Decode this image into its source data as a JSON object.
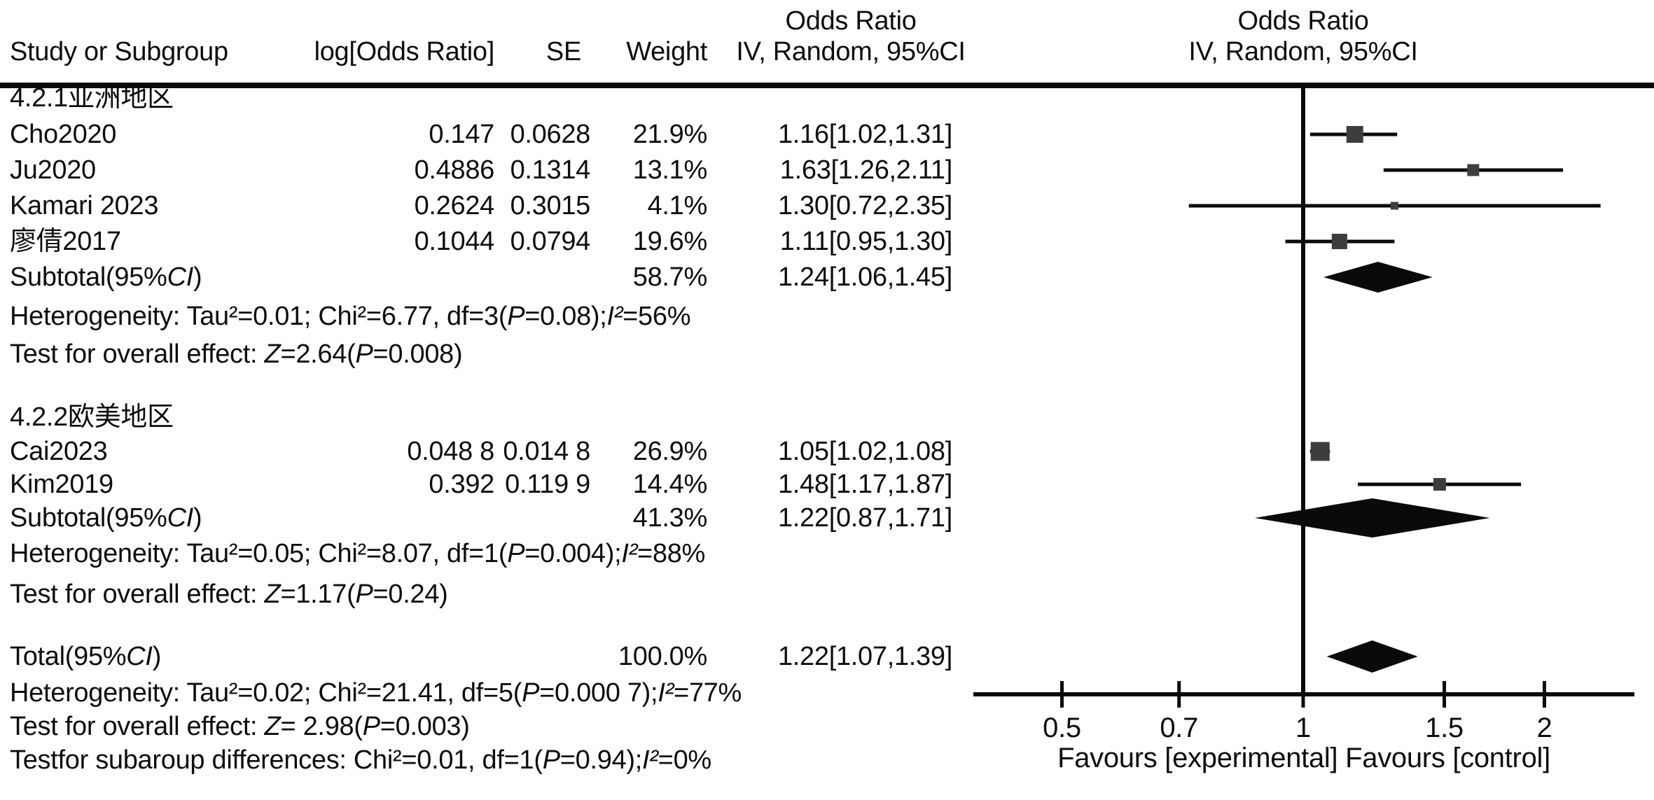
{
  "table_header": {
    "study": "Study or Subgroup",
    "log_or": "log[Odds Ratio]",
    "se": "SE",
    "weight": "Weight",
    "effect_line1": "Odds Ratio",
    "effect_line2": "IV, Random, 95%CI",
    "plot_line1": "Odds Ratio",
    "plot_line2": "IV, Random, 95%CI"
  },
  "colors": {
    "square": "#3d3d3d",
    "diamond": "#0a0a0a",
    "line": "#0a0a0a",
    "text": "#0d0d0d"
  },
  "chart_data": {
    "type": "forest",
    "effect_measure": "Odds Ratio",
    "model": "IV, Random, 95%CI",
    "x_scale": "log",
    "axis_ticks": [
      0.5,
      0.7,
      1,
      1.5,
      2
    ],
    "favours_label": "Favours [experimental] Favours [control]",
    "groups": [
      {
        "label": "4.2.1亚洲地区",
        "studies": [
          {
            "name": "Cho2020",
            "log_or": "0.147",
            "se": "0.0628",
            "weight": "21.9%",
            "ci_text": "1.16[1.02,1.31]",
            "or": 1.16,
            "lo": 1.02,
            "hi": 1.31,
            "weight_pct": 21.9
          },
          {
            "name": "Ju2020",
            "log_or": "0.4886",
            "se": "0.1314",
            "weight": "13.1%",
            "ci_text": "1.63[1.26,2.11]",
            "or": 1.63,
            "lo": 1.26,
            "hi": 2.11,
            "weight_pct": 13.1
          },
          {
            "name": "Kamari 2023",
            "log_or": "0.2624",
            "se": "0.3015",
            "weight": "4.1%",
            "ci_text": "1.30[0.72,2.35]",
            "or": 1.3,
            "lo": 0.72,
            "hi": 2.35,
            "weight_pct": 4.1
          },
          {
            "name": "廖倩2017",
            "log_or": "0.1044",
            "se": "0.0794",
            "weight": "19.6%",
            "ci_text": "1.11[0.95,1.30]",
            "or": 1.11,
            "lo": 0.95,
            "hi": 1.3,
            "weight_pct": 19.6
          }
        ],
        "subtotal": {
          "label": "Subtotal(95%CI)",
          "weight": "58.7%",
          "ci_text": "1.24[1.06,1.45]",
          "or": 1.24,
          "lo": 1.06,
          "hi": 1.45
        },
        "heterogeneity": "Heterogeneity: Tau²=0.01; Chi²=6.77, df=3(P=0.08);I²=56%",
        "overall_effect": "Test for overall effect: Z=2.64(P=0.008)"
      },
      {
        "label": "4.2.2欧美地区",
        "studies": [
          {
            "name": "Cai2023",
            "log_or": "0.048 8",
            "se": "0.014 8",
            "weight": "26.9%",
            "ci_text": "1.05[1.02,1.08]",
            "or": 1.05,
            "lo": 1.02,
            "hi": 1.08,
            "weight_pct": 26.9
          },
          {
            "name": "Kim2019",
            "log_or": "0.392",
            "se": "0.119 9",
            "weight": "14.4%",
            "ci_text": "1.48[1.17,1.87]",
            "or": 1.48,
            "lo": 1.17,
            "hi": 1.87,
            "weight_pct": 14.4
          }
        ],
        "subtotal": {
          "label": "Subtotal(95%CI)",
          "weight": "41.3%",
          "ci_text": "1.22[0.87,1.71]",
          "or": 1.22,
          "lo": 0.87,
          "hi": 1.71
        },
        "heterogeneity": "Heterogeneity: Tau²=0.05; Chi²=8.07, df=1(P=0.004);I²=88%",
        "overall_effect": "Test for overall effect: Z=1.17(P=0.24)"
      }
    ],
    "total": {
      "label": "Total(95%CI)",
      "weight": "100.0%",
      "ci_text": "1.22[1.07,1.39]",
      "or": 1.22,
      "lo": 1.07,
      "hi": 1.39
    },
    "total_footnotes": [
      "Heterogeneity: Tau²=0.02; Chi²=21.41, df=5(P=0.000 7);I²=77%",
      "Test for overall effect: Z= 2.98(P=0.003)",
      "Testfor subaroup differences: Chi²=0.01, df=1(P=0.94);I²=0%"
    ]
  }
}
